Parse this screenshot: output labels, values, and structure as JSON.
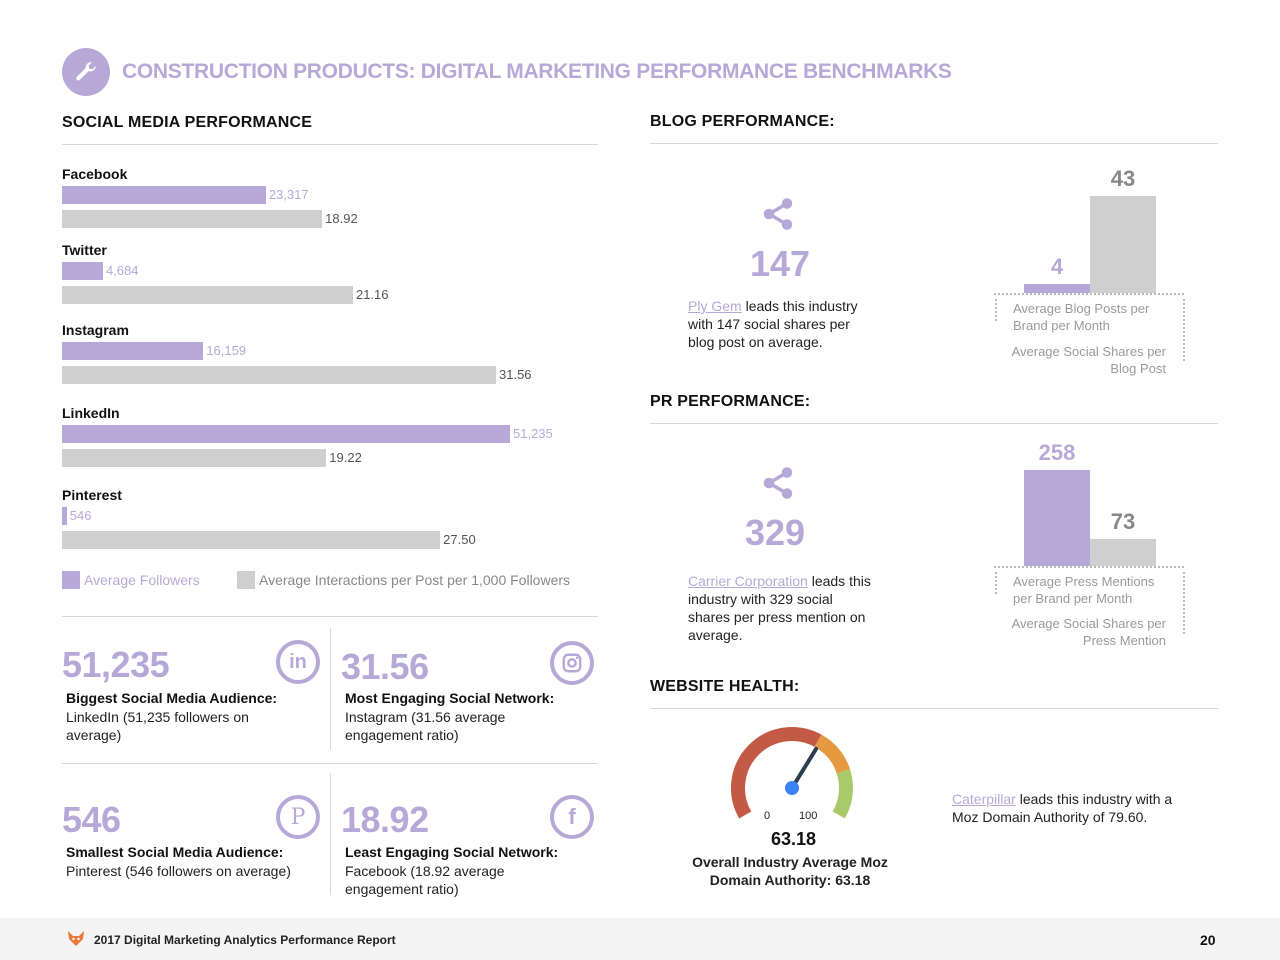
{
  "header": {
    "title": "CONSTRUCTION PRODUCTS: DIGITAL MARKETING PERFORMANCE BENCHMARKS",
    "icon": "wrench-icon"
  },
  "social": {
    "title": "SOCIAL MEDIA PERFORMANCE",
    "legend": {
      "followers": "Average Followers",
      "interactions": "Average Interactions per Post per 1,000 Followers"
    }
  },
  "stats": [
    {
      "value": "51,235",
      "title": "Biggest Social Media Audience:",
      "desc": "LinkedIn (51,235 followers on average)",
      "icon": "linkedin-icon",
      "icon_text": "in"
    },
    {
      "value": "31.56",
      "title": "Most Engaging Social Network:",
      "desc": "Instagram (31.56 average engagement ratio)",
      "icon": "instagram-icon"
    },
    {
      "value": "546",
      "title": "Smallest Social Media Audience:",
      "desc": "Pinterest (546 followers on average)",
      "icon": "pinterest-icon",
      "icon_text": "P"
    },
    {
      "value": "18.92",
      "title": "Least Engaging Social Network:",
      "desc": "Facebook (18.92 average engagement ratio)",
      "icon": "facebook-icon",
      "icon_text": "f"
    }
  ],
  "blog": {
    "title": "BLOG PERFORMANCE:",
    "highlight": "147",
    "leader": "Ply Gem",
    "text": " leads this industry with 147 social shares per blog post on average.",
    "label_a": "Average Blog Posts per Brand per Month",
    "label_b": "Average Social Shares per Blog Post"
  },
  "pr": {
    "title": "PR PERFORMANCE:",
    "highlight": "329",
    "leader": "Carrier Corporation",
    "text": " leads this industry with 329 social shares per press mention on average.",
    "label_a": "Average Press Mentions per Brand per Month",
    "label_b": "Average Social Shares per Press Mention"
  },
  "website": {
    "title": "WEBSITE HEALTH:",
    "gauge_min": "0",
    "gauge_max": "100",
    "gauge_value": 63.18,
    "gauge_value_label": "63.18",
    "caption": "Overall Industry Average Moz Domain Authority: 63.18",
    "leader": "Caterpillar",
    "leader_text": " leads this industry with a Moz Domain Authority of 79.60."
  },
  "footer": {
    "text": "2017 Digital Marketing Analytics Performance Report",
    "page": "20"
  },
  "colors": {
    "purple": "#b6a9d8",
    "gray": "#cfcfcf"
  },
  "chart_data": [
    {
      "type": "bar",
      "orientation": "horizontal",
      "title": "SOCIAL MEDIA PERFORMANCE",
      "categories": [
        "Facebook",
        "Twitter",
        "Instagram",
        "LinkedIn",
        "Pinterest"
      ],
      "series": [
        {
          "name": "Average Followers",
          "values": [
            23317,
            4684,
            16159,
            51235,
            546
          ],
          "labels": [
            "23,317",
            "4,684",
            "16,159",
            "51,235",
            "546"
          ]
        },
        {
          "name": "Average Interactions per Post per 1,000 Followers",
          "values": [
            18.92,
            21.16,
            31.56,
            19.22,
            27.5
          ],
          "labels": [
            "18.92",
            "21.16",
            "31.56",
            "19.22",
            "27.50"
          ]
        }
      ]
    },
    {
      "type": "bar",
      "categories": [
        "Average Blog Posts per Brand per Month",
        "Average Social Shares per Blog Post"
      ],
      "values": [
        4,
        43
      ],
      "labels": [
        "4",
        "43"
      ]
    },
    {
      "type": "bar",
      "categories": [
        "Average Press Mentions per Brand per Month",
        "Average Social Shares per Press Mention"
      ],
      "values": [
        258,
        73
      ],
      "labels": [
        "258",
        "73"
      ]
    }
  ]
}
